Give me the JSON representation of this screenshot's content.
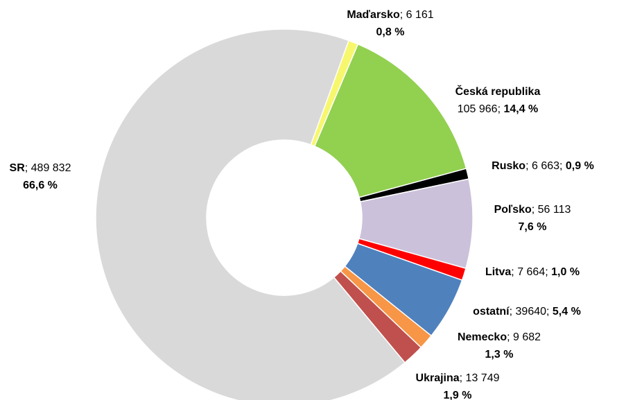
{
  "chart_data": {
    "type": "donut",
    "categories": [
      "Maďarsko",
      "Česká republika",
      "Rusko",
      "Poľsko",
      "Litva",
      "ostatní",
      "Nemecko",
      "Ukrajina",
      "SR"
    ],
    "values": [
      6161,
      105966,
      6663,
      56113,
      7664,
      39640,
      9682,
      13749,
      489832
    ],
    "value_labels": [
      "6 161",
      "105 966",
      "6 663",
      "56 113",
      "7 664",
      "39640",
      "9 682",
      "13 749",
      "489 832"
    ],
    "percents": [
      0.8,
      14.4,
      0.9,
      7.6,
      1.0,
      5.4,
      1.3,
      1.9,
      66.6
    ],
    "percent_labels": [
      "0,8 %",
      "14,4 %",
      "0,9 %",
      "7,6 %",
      "1,0 %",
      "5,4 %",
      "1,3 %",
      "1,9 %",
      "66,6 %"
    ],
    "label_separator": "; ",
    "colors": [
      "#f7f76e",
      "#92d050",
      "#000000",
      "#ccc1da",
      "#ff0000",
      "#4f81bd",
      "#f79646",
      "#c0504d",
      "#d9d9d9"
    ]
  }
}
